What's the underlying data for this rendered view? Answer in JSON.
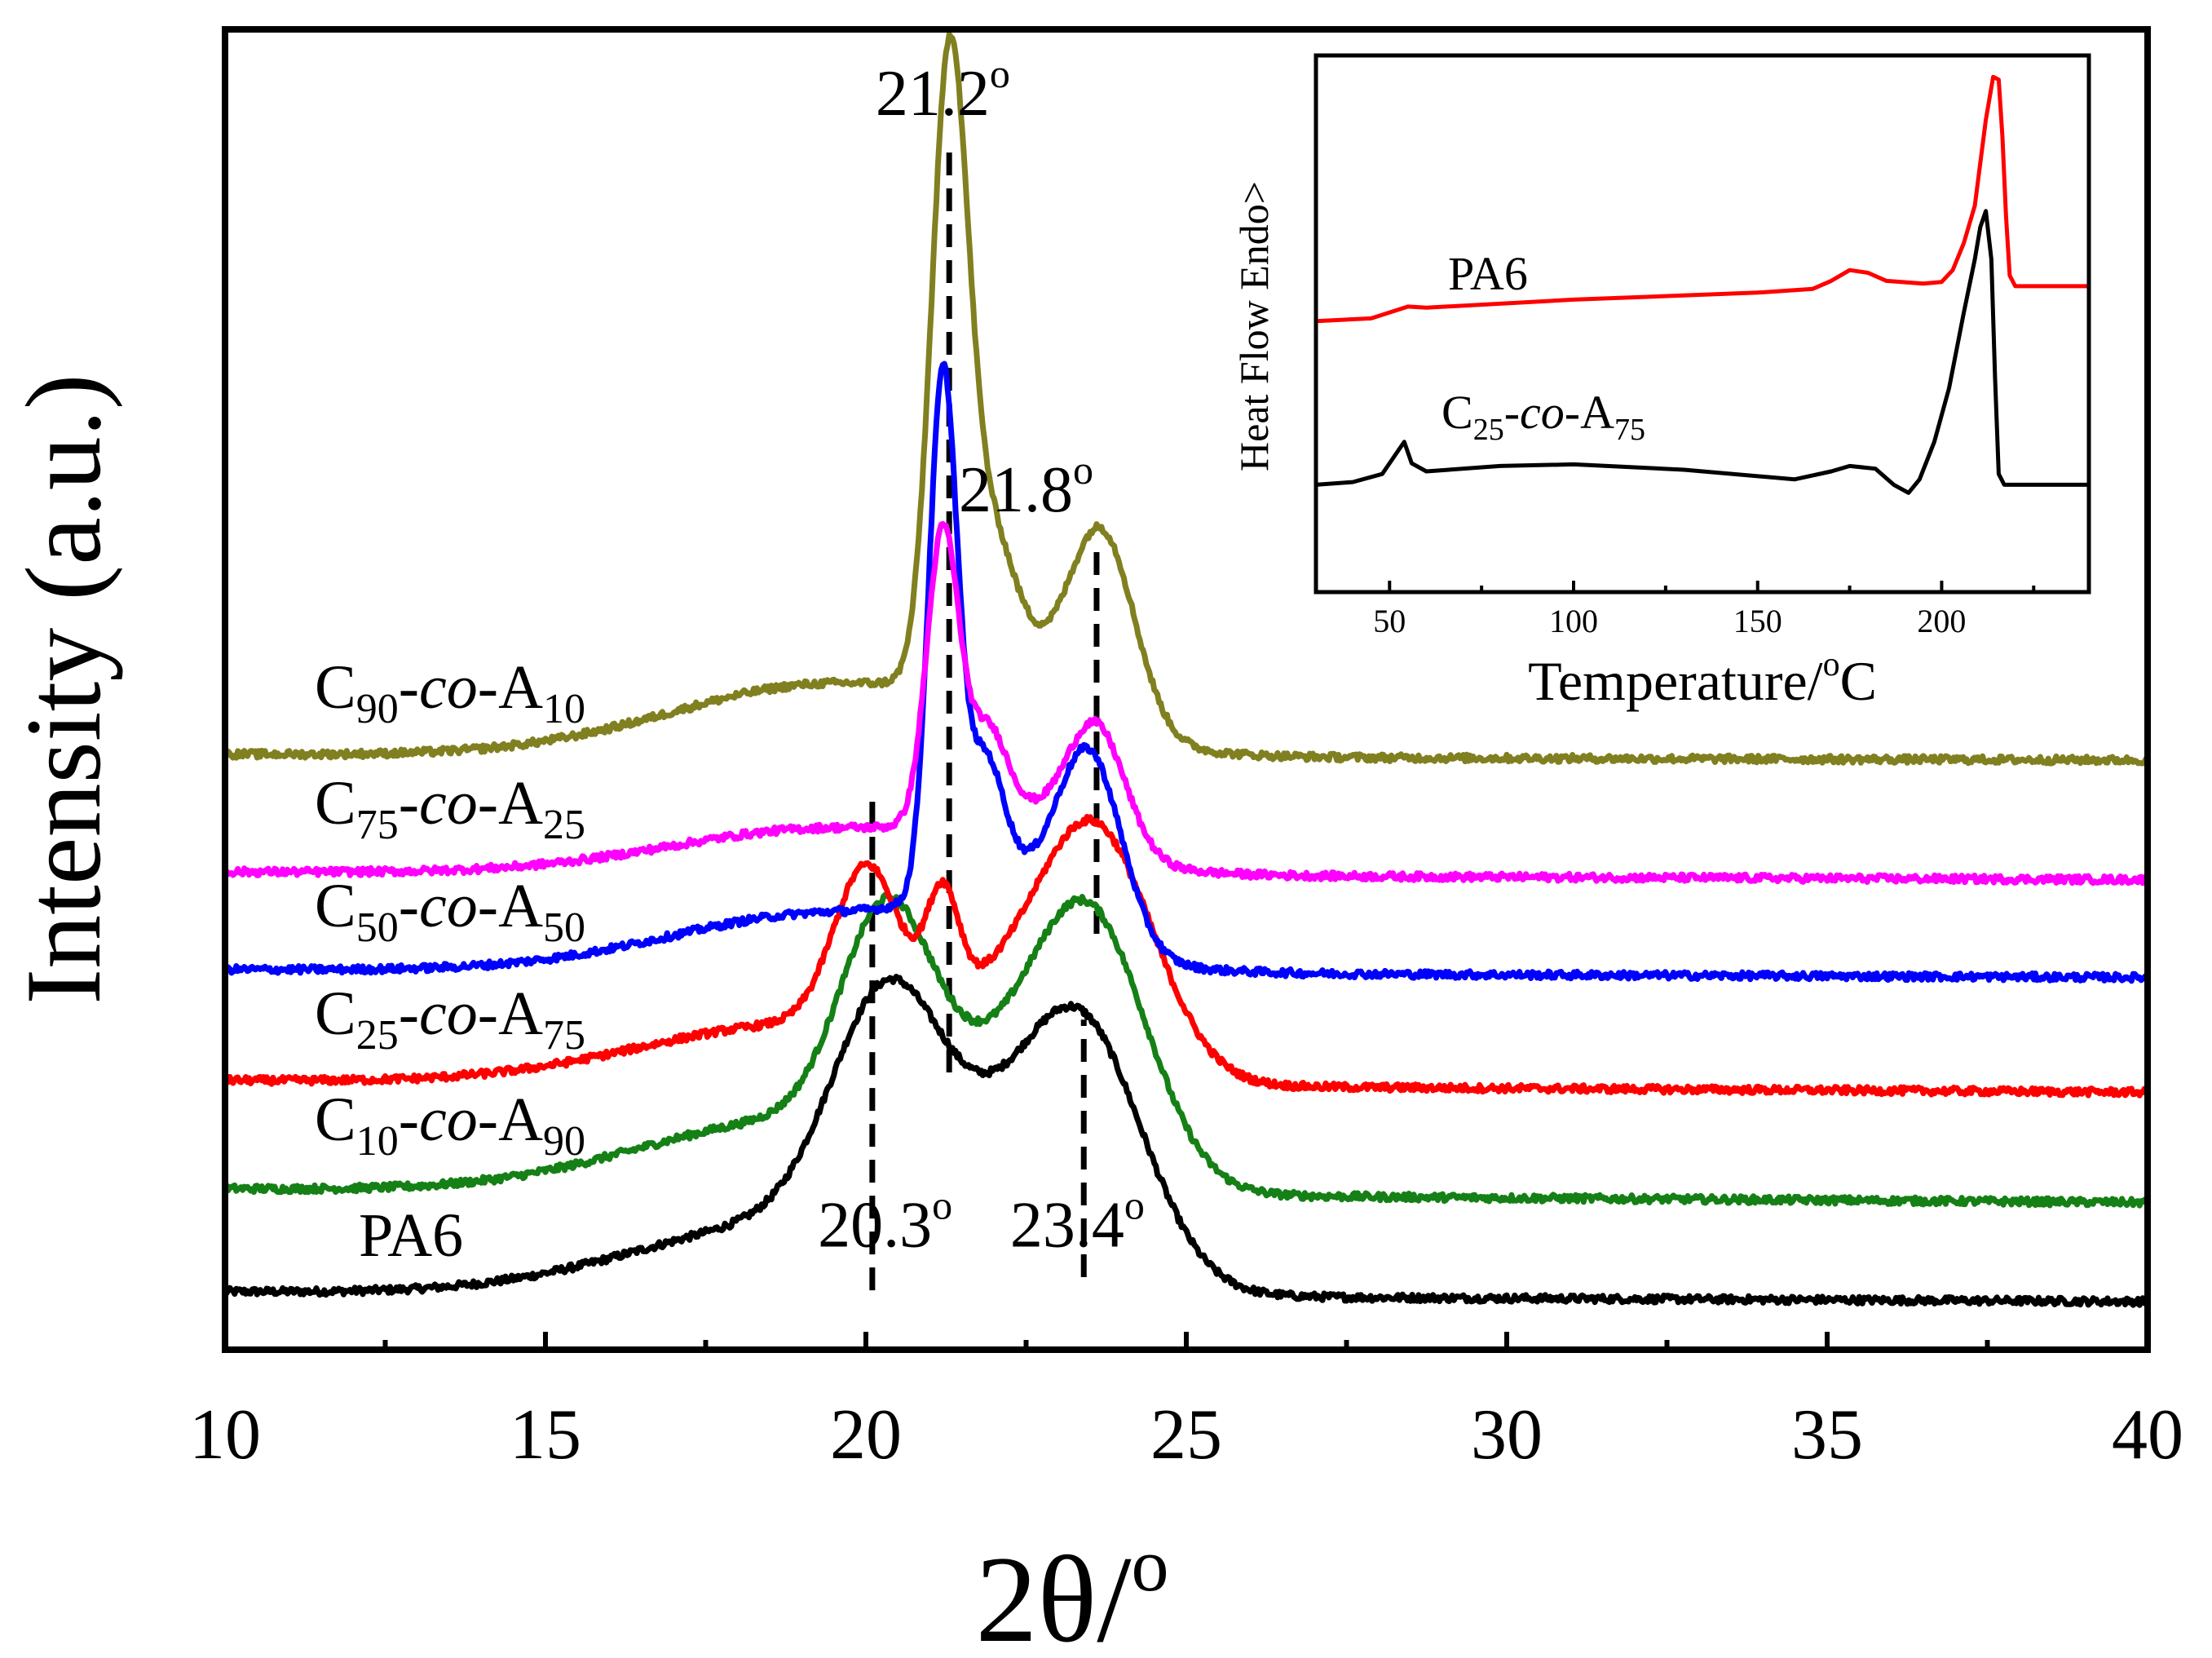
{
  "chart_data": [
    {
      "type": "line",
      "title": "",
      "xlabel": "2θ/",
      "xlabel_sup": "o",
      "ylabel": "Intensity (a.u.)",
      "xlim": [
        10,
        40
      ],
      "ylim": [
        0,
        100
      ],
      "yticks_shown": false,
      "xticks": [
        10,
        15,
        20,
        25,
        30,
        35,
        40
      ],
      "x_minor_step": 2.5,
      "series": [
        {
          "name": "PA6",
          "color": "#000000",
          "baseline": 4.4,
          "slope": -0.025,
          "peaks": [
            [
              20.3,
              15.6,
              0.85
            ],
            [
              23.4,
              17.3,
              0.95
            ],
            [
              21.8,
              6.5,
              1.3
            ],
            [
              19.0,
              5.5,
              2.5
            ]
          ],
          "label": {
            "main": "PA6",
            "sub1": "",
            "mid": "",
            "main2": "",
            "sub2": ""
          }
        },
        {
          "name": "C10-co-A90",
          "color": "#158015",
          "baseline": 12.2,
          "slope": -0.035,
          "peaks": [
            [
              20.3,
              15.0,
              0.7
            ],
            [
              23.5,
              19.0,
              0.9
            ],
            [
              21.8,
              5.5,
              1.2
            ],
            [
              19.0,
              5.5,
              2.5
            ]
          ],
          "label": {
            "main": "C",
            "sub1": "10",
            "mid": "-co-",
            "main2": "A",
            "sub2": "90"
          }
        },
        {
          "name": "C25-co-A75",
          "color": "#ff0000",
          "baseline": 20.4,
          "slope": -0.03,
          "peaks": [
            [
              20.0,
              11.5,
              0.5
            ],
            [
              21.2,
              8.0,
              0.25
            ],
            [
              23.6,
              17.5,
              0.9
            ],
            [
              22.0,
              4.0,
              1.2
            ],
            [
              19.0,
              4.5,
              2.5
            ]
          ],
          "label": {
            "main": "C",
            "sub1": "25",
            "mid": "-co-",
            "main2": "A",
            "sub2": "75"
          }
        },
        {
          "name": "C50-co-A50",
          "color": "#0000ff",
          "baseline": 28.8,
          "slope": -0.02,
          "peaks": [
            [
              21.2,
              39.0,
              0.22
            ],
            [
              21.85,
              9.5,
              0.3
            ],
            [
              23.5,
              13.5,
              0.5
            ],
            [
              22.3,
              4.5,
              1.0
            ],
            [
              19.5,
              4.5,
              2.5
            ]
          ],
          "label": {
            "main": "C",
            "sub1": "50",
            "mid": "-co-",
            "main2": "A",
            "sub2": "50"
          }
        },
        {
          "name": "C75-co-A25",
          "color": "#ff00ff",
          "baseline": 36.2,
          "slope": -0.02,
          "peaks": [
            [
              21.2,
              22.0,
              0.25
            ],
            [
              21.9,
              6.5,
              0.3
            ],
            [
              23.6,
              9.0,
              0.45
            ],
            [
              22.5,
              3.0,
              1.0
            ],
            [
              19.5,
              3.5,
              2.5
            ]
          ],
          "label": {
            "main": "C",
            "sub1": "75",
            "mid": "-co-",
            "main2": "A",
            "sub2": "25"
          }
        },
        {
          "name": "C90-co-A10",
          "color": "#808020",
          "baseline": 45.1,
          "slope": -0.015,
          "peaks": [
            [
              21.3,
              45.0,
              0.28
            ],
            [
              21.9,
              10.5,
              0.4
            ],
            [
              23.7,
              13.5,
              0.5
            ],
            [
              22.6,
              4.5,
              1.0
            ],
            [
              19.5,
              5.5,
              2.5
            ]
          ],
          "label": {
            "main": "C",
            "sub1": "90",
            "mid": "-co-",
            "main2": "A",
            "sub2": "10"
          }
        }
      ],
      "reference_lines": [
        {
          "x": 20.1,
          "y_from": 4.5,
          "y_to": 41.5
        },
        {
          "x": 21.3,
          "y_from": 21.0,
          "y_to": 91.0
        },
        {
          "x": 23.4,
          "y_from": 5.5,
          "y_to": 25.0
        },
        {
          "x": 23.6,
          "y_from": 31.5,
          "y_to": 61.0
        }
      ],
      "annotations": [
        {
          "text": "21.2",
          "sup": "o",
          "x": 21.2,
          "y": 93.5
        },
        {
          "text": "21.8",
          "sup": "o",
          "x": 22.5,
          "y": 63.5
        },
        {
          "text": "20.3",
          "sup": "o",
          "x": 20.3,
          "y": 7.8
        },
        {
          "text": "23.4",
          "sup": "o",
          "x": 23.3,
          "y": 7.8
        }
      ]
    },
    {
      "type": "line",
      "title": "inset",
      "xlabel": "Temperature/",
      "xlabel_sup": "o",
      "xlabel_tail": "C",
      "ylabel": "Heat Flow Endo>",
      "xlim": [
        30,
        240
      ],
      "ylim": [
        0,
        100
      ],
      "xticks": [
        50,
        100,
        150,
        200
      ],
      "series": [
        {
          "name": "PA6",
          "color": "#ff0000",
          "label": "PA6",
          "points": [
            [
              30,
              50.5
            ],
            [
              45,
              51.0
            ],
            [
              55,
              53.2
            ],
            [
              60,
              53.0
            ],
            [
              100,
              54.5
            ],
            [
              150,
              55.8
            ],
            [
              165,
              56.5
            ],
            [
              170,
              58.0
            ],
            [
              175,
              60.0
            ],
            [
              180,
              59.5
            ],
            [
              185,
              58.0
            ],
            [
              195,
              57.5
            ],
            [
              200,
              57.8
            ],
            [
              203,
              60.0
            ],
            [
              206,
              65.0
            ],
            [
              209,
              72.0
            ],
            [
              212,
              88.0
            ],
            [
              214,
              96.0
            ],
            [
              215.5,
              95.5
            ],
            [
              216.5,
              85.0
            ],
            [
              217.5,
              70.0
            ],
            [
              218.5,
              59.0
            ],
            [
              220,
              57.0
            ],
            [
              240,
              57.0
            ]
          ]
        },
        {
          "name": "C25-co-A75",
          "color": "#000000",
          "label_parts": {
            "main": "C",
            "sub1": "25",
            "mid": "-co-",
            "main2": "A",
            "sub2": "75"
          },
          "points": [
            [
              30,
              20.0
            ],
            [
              40,
              20.5
            ],
            [
              48,
              22.0
            ],
            [
              52,
              26.0
            ],
            [
              54,
              28.0
            ],
            [
              56,
              24.0
            ],
            [
              60,
              22.5
            ],
            [
              80,
              23.5
            ],
            [
              100,
              23.8
            ],
            [
              130,
              22.8
            ],
            [
              160,
              21.0
            ],
            [
              170,
              22.5
            ],
            [
              175,
              23.5
            ],
            [
              182,
              23.0
            ],
            [
              187,
              20.0
            ],
            [
              191,
              18.5
            ],
            [
              194,
              21.0
            ],
            [
              198,
              28.0
            ],
            [
              202,
              38.0
            ],
            [
              206,
              52.0
            ],
            [
              209,
              62.0
            ],
            [
              210.5,
              68.0
            ],
            [
              212,
              71.0
            ],
            [
              213.5,
              62.0
            ],
            [
              214.5,
              40.0
            ],
            [
              215.5,
              22.0
            ],
            [
              217,
              20.0
            ],
            [
              240,
              20.0
            ]
          ]
        }
      ]
    }
  ]
}
